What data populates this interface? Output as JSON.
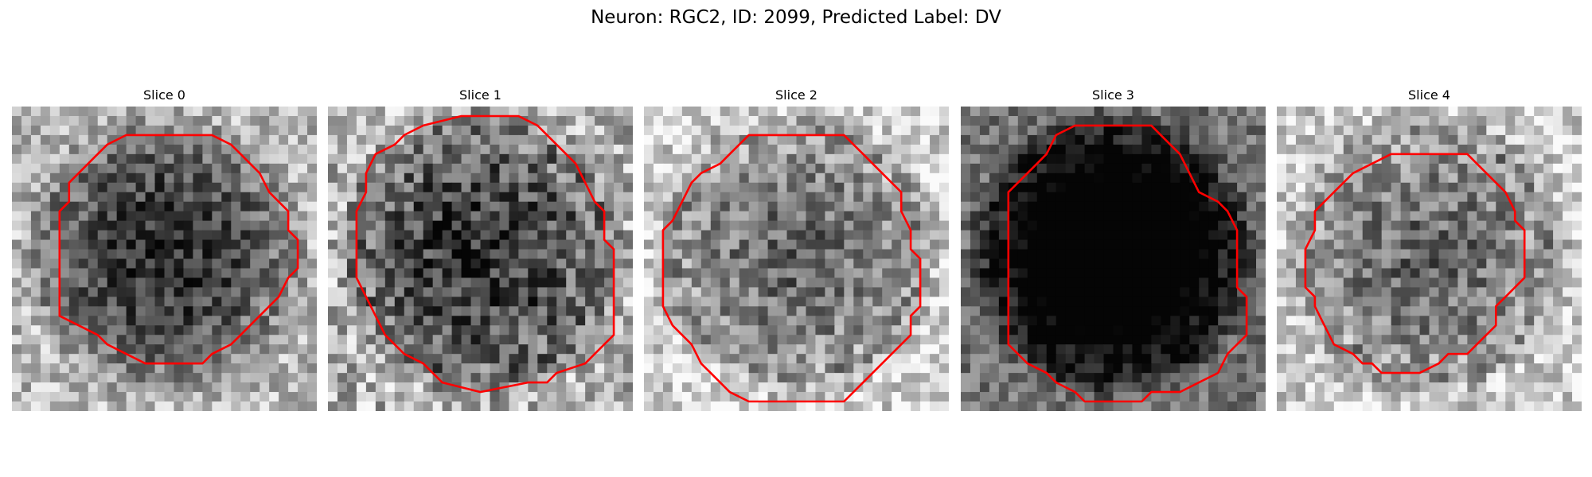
{
  "figure": {
    "title": "Neuron: RGC2, ID: 2099, Predicted Label: DV"
  },
  "contour_color": "#ff0000",
  "slices": [
    {
      "label": "Slice 0",
      "image": "grayscale-microscopy-patch",
      "contour": "red-polygon-outline",
      "tone": "medium"
    },
    {
      "label": "Slice 1",
      "image": "grayscale-microscopy-patch",
      "contour": "red-polygon-outline",
      "tone": "medium-dark"
    },
    {
      "label": "Slice 2",
      "image": "grayscale-microscopy-patch",
      "contour": "red-polygon-outline",
      "tone": "medium-light"
    },
    {
      "label": "Slice 3",
      "image": "grayscale-microscopy-patch",
      "contour": "red-polygon-outline",
      "tone": "dark"
    },
    {
      "label": "Slice 4",
      "image": "grayscale-microscopy-patch",
      "contour": "red-polygon-outline",
      "tone": "medium-light"
    }
  ]
}
